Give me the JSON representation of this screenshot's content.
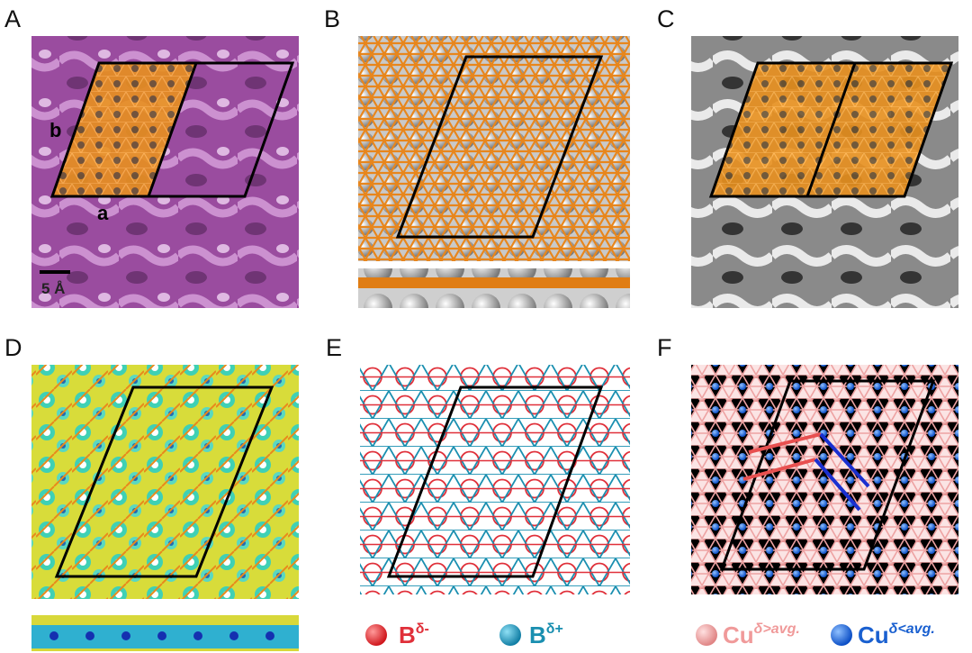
{
  "panels": [
    {
      "label": "A",
      "lattice_labels": [
        "b",
        "a"
      ],
      "scale_bar": "5 Å"
    },
    {
      "label": "B"
    },
    {
      "label": "C"
    },
    {
      "label": "D"
    },
    {
      "label": "E",
      "legend": [
        {
          "symbol": "B",
          "superscript": "δ-"
        },
        {
          "symbol": "B",
          "superscript": "δ+"
        }
      ]
    },
    {
      "label": "F",
      "legend": [
        {
          "symbol": "Cu",
          "superscript": "δ>avg."
        },
        {
          "symbol": "Cu",
          "superscript": "δ<avg."
        }
      ]
    }
  ]
}
